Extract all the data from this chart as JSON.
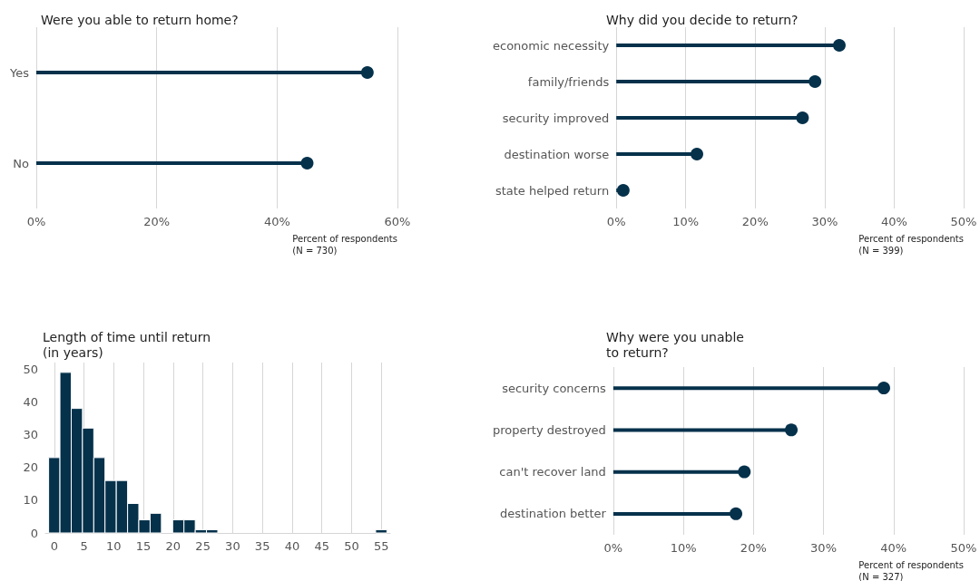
{
  "chart_data": [
    {
      "type": "lollipop",
      "title": "Were you able to return home?",
      "orientation": "horizontal",
      "categories": [
        "Yes",
        "No"
      ],
      "values": [
        55,
        45
      ],
      "color": "#05314b",
      "xlabel": "Percent of respondents\n(N = 730)",
      "xlim": [
        0,
        60
      ],
      "xticks": [
        {
          "value": 0,
          "label": "0%"
        },
        {
          "value": 20,
          "label": "20%"
        },
        {
          "value": 40,
          "label": "40%"
        },
        {
          "value": 60,
          "label": "60%"
        }
      ],
      "grid": "x",
      "marker": "circle"
    },
    {
      "type": "lollipop",
      "title": "Why did you decide to return?",
      "orientation": "horizontal",
      "categories": [
        "economic necessity",
        "family/friends",
        "security improved",
        "destination worse",
        "state helped return"
      ],
      "values": [
        32.1,
        28.6,
        26.8,
        11.6,
        1.0
      ],
      "color": "#05314b",
      "xlabel": "Percent of respondents\n(N = 399)",
      "xlim": [
        0,
        50
      ],
      "xticks": [
        {
          "value": 0,
          "label": "0%"
        },
        {
          "value": 10,
          "label": "10%"
        },
        {
          "value": 20,
          "label": "20%"
        },
        {
          "value": 30,
          "label": "30%"
        },
        {
          "value": 40,
          "label": "40%"
        },
        {
          "value": 50,
          "label": "50%"
        }
      ],
      "grid": "x",
      "marker": "circle"
    },
    {
      "type": "histogram",
      "title": "Length of time until return\n(in years)",
      "bins": [
        -0.95,
        0.95,
        2.85,
        4.74,
        6.64,
        8.53,
        10.43,
        12.33,
        14.22,
        16.12,
        18.02,
        19.91,
        21.81,
        23.71,
        25.6,
        27.5,
        29.4,
        31.29,
        33.19,
        35.09,
        36.98,
        38.88,
        40.78,
        42.67,
        44.57,
        46.47,
        48.36,
        50.26,
        52.16,
        54.05,
        55.95
      ],
      "values": [
        23,
        49,
        38,
        32,
        23,
        16,
        16,
        9,
        4,
        6,
        0,
        4,
        4,
        1,
        1,
        0,
        0,
        0,
        0,
        0,
        0,
        0,
        0,
        0,
        0,
        0,
        0,
        0,
        0,
        1
      ],
      "color": "#05314b",
      "xlim": [
        -1.5,
        56.5
      ],
      "xticks": [
        0,
        5,
        10,
        15,
        20,
        25,
        30,
        35,
        40,
        45,
        50,
        55
      ],
      "ylim": [
        0,
        52
      ],
      "yticks": [
        0,
        10,
        20,
        30,
        40,
        50
      ],
      "grid": "x"
    },
    {
      "type": "lollipop",
      "title": "Why were you unable\nto return?",
      "orientation": "horizontal",
      "categories": [
        "security concerns",
        "property destroyed",
        "can't recover land",
        "destination better"
      ],
      "values": [
        38.6,
        25.4,
        18.7,
        17.5
      ],
      "color": "#05314b",
      "xlabel": "Percent of respondents\n(N = 327)",
      "xlim": [
        0,
        50
      ],
      "xticks": [
        {
          "value": 0,
          "label": "0%"
        },
        {
          "value": 10,
          "label": "10%"
        },
        {
          "value": 20,
          "label": "20%"
        },
        {
          "value": 30,
          "label": "30%"
        },
        {
          "value": 40,
          "label": "40%"
        },
        {
          "value": 50,
          "label": "50%"
        }
      ],
      "grid": "x",
      "marker": "circle"
    }
  ]
}
